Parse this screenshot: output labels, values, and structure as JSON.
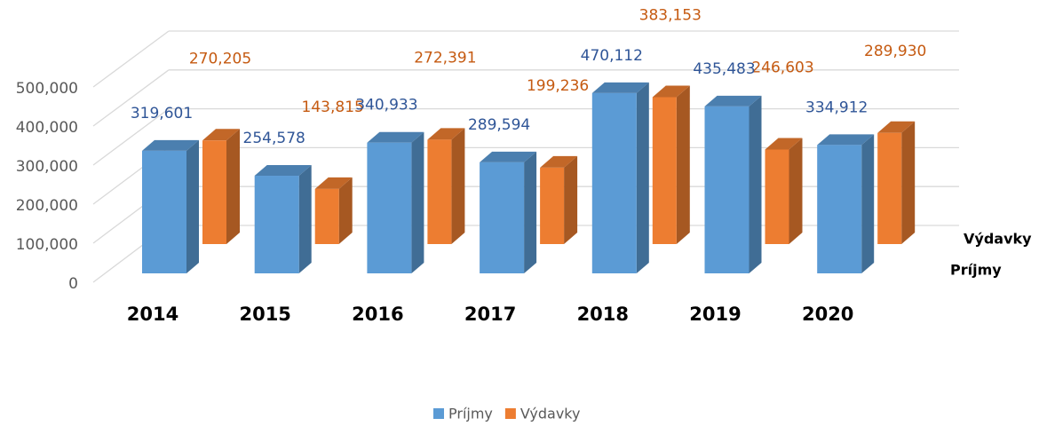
{
  "chart_data": {
    "type": "bar3d",
    "categories": [
      "2014",
      "2015",
      "2016",
      "2017",
      "2018",
      "2019",
      "2020"
    ],
    "series": [
      {
        "name": "Príjmy",
        "color": "#5b9bd5",
        "label_color": "#2f5597",
        "values": [
          319601,
          254578,
          340933,
          289594,
          470112,
          435483,
          334912
        ],
        "value_labels": [
          "319,601",
          "254,578",
          "340,933",
          "289,594",
          "470,112",
          "435,483",
          "334,912"
        ]
      },
      {
        "name": "Výdavky",
        "color": "#ed7d31",
        "label_color": "#c55a11",
        "values": [
          270205,
          143815,
          272391,
          199236,
          383153,
          246603,
          289930
        ],
        "value_labels": [
          "270,205",
          "143,815",
          "272,391",
          "199,236",
          "383,153",
          "246,603",
          "289,930"
        ]
      }
    ],
    "ylim": [
      0,
      500000
    ],
    "yticks": [
      0,
      {
        "value": 100000,
        "label": "100,000"
      },
      {
        "value": 200000,
        "label": "200,000"
      },
      {
        "value": 300000,
        "label": "300,000"
      },
      {
        "value": 400000,
        "label": "400,000"
      },
      {
        "value": 500000,
        "label": "500,000"
      }
    ],
    "grid": true,
    "legend": "bottom"
  }
}
